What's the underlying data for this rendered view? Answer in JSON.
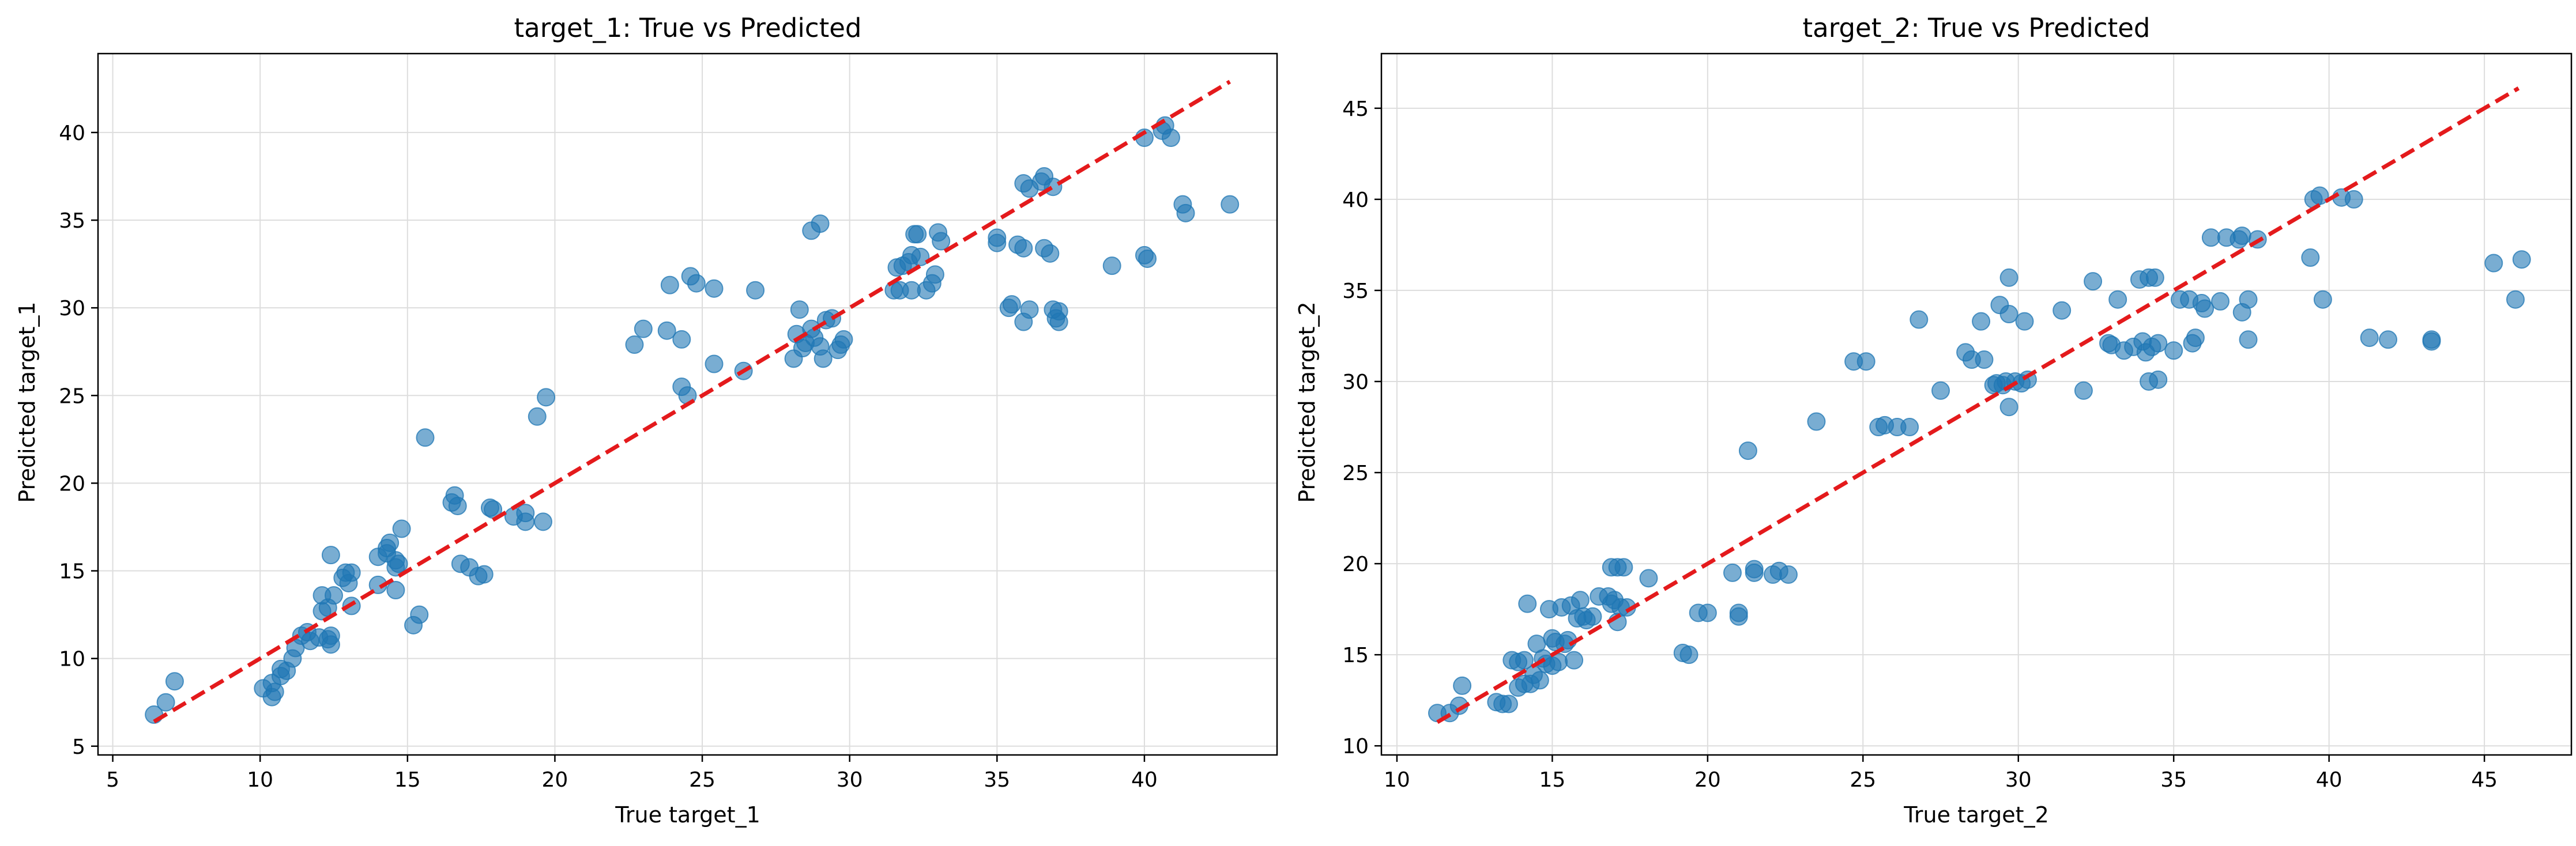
{
  "chart_data": [
    {
      "type": "scatter",
      "title": "target_1: True vs Predicted",
      "xlabel": "True target_1",
      "ylabel": "Predicted target_1",
      "xlim": [
        4.5,
        44.5
      ],
      "ylim": [
        4.5,
        44.5
      ],
      "xticks": [
        5,
        10,
        15,
        20,
        25,
        30,
        35,
        40
      ],
      "yticks": [
        5,
        10,
        15,
        20,
        25,
        30,
        35,
        40
      ],
      "grid": true,
      "point_color": "#1f77b4",
      "reference_color": "#e41a1c",
      "reference_line": [
        [
          6.4,
          6.4
        ],
        [
          42.9,
          42.9
        ]
      ],
      "points": [
        [
          6.4,
          6.8
        ],
        [
          6.8,
          7.5
        ],
        [
          7.1,
          8.7
        ],
        [
          10.1,
          8.3
        ],
        [
          10.4,
          7.8
        ],
        [
          10.5,
          8.1
        ],
        [
          10.4,
          8.6
        ],
        [
          10.7,
          9.0
        ],
        [
          10.7,
          9.4
        ],
        [
          10.9,
          9.3
        ],
        [
          11.1,
          10.0
        ],
        [
          11.2,
          10.6
        ],
        [
          11.4,
          11.3
        ],
        [
          11.7,
          11.0
        ],
        [
          11.6,
          11.5
        ],
        [
          12.0,
          11.2
        ],
        [
          12.1,
          12.7
        ],
        [
          12.1,
          13.6
        ],
        [
          12.3,
          11.1
        ],
        [
          12.3,
          12.9
        ],
        [
          12.4,
          15.9
        ],
        [
          12.5,
          13.6
        ],
        [
          12.4,
          10.8
        ],
        [
          12.4,
          11.3
        ],
        [
          12.8,
          14.6
        ],
        [
          12.9,
          14.9
        ],
        [
          13.0,
          14.3
        ],
        [
          13.1,
          13.0
        ],
        [
          13.1,
          14.9
        ],
        [
          14.0,
          14.2
        ],
        [
          14.0,
          15.8
        ],
        [
          14.3,
          16.0
        ],
        [
          14.3,
          16.3
        ],
        [
          14.4,
          16.6
        ],
        [
          14.6,
          15.6
        ],
        [
          14.6,
          15.2
        ],
        [
          14.7,
          15.4
        ],
        [
          14.6,
          13.9
        ],
        [
          14.8,
          17.4
        ],
        [
          15.2,
          11.9
        ],
        [
          15.4,
          12.5
        ],
        [
          15.6,
          22.6
        ],
        [
          16.5,
          18.9
        ],
        [
          16.6,
          19.3
        ],
        [
          16.7,
          18.7
        ],
        [
          16.8,
          15.4
        ],
        [
          17.1,
          15.2
        ],
        [
          17.4,
          14.7
        ],
        [
          17.6,
          14.8
        ],
        [
          17.8,
          18.6
        ],
        [
          17.9,
          18.5
        ],
        [
          18.6,
          18.1
        ],
        [
          19.0,
          17.8
        ],
        [
          19.0,
          18.3
        ],
        [
          19.4,
          23.8
        ],
        [
          19.6,
          17.8
        ],
        [
          19.7,
          24.9
        ],
        [
          22.7,
          27.9
        ],
        [
          23.0,
          28.8
        ],
        [
          23.8,
          28.7
        ],
        [
          23.9,
          31.3
        ],
        [
          24.3,
          28.2
        ],
        [
          24.3,
          25.5
        ],
        [
          24.5,
          25.0
        ],
        [
          24.6,
          31.8
        ],
        [
          24.8,
          31.4
        ],
        [
          25.4,
          31.1
        ],
        [
          25.4,
          26.8
        ],
        [
          26.4,
          26.4
        ],
        [
          26.8,
          31.0
        ],
        [
          28.1,
          27.1
        ],
        [
          28.2,
          28.5
        ],
        [
          28.3,
          29.9
        ],
        [
          28.4,
          27.7
        ],
        [
          28.5,
          28.0
        ],
        [
          28.7,
          34.4
        ],
        [
          28.7,
          28.8
        ],
        [
          28.8,
          28.3
        ],
        [
          29.0,
          34.8
        ],
        [
          29.0,
          27.8
        ],
        [
          29.1,
          27.1
        ],
        [
          29.2,
          29.3
        ],
        [
          29.4,
          29.4
        ],
        [
          29.6,
          27.6
        ],
        [
          29.7,
          27.9
        ],
        [
          29.8,
          28.2
        ],
        [
          31.5,
          31.0
        ],
        [
          31.6,
          32.3
        ],
        [
          31.7,
          31.0
        ],
        [
          31.8,
          32.4
        ],
        [
          32.0,
          32.6
        ],
        [
          32.1,
          33.0
        ],
        [
          32.1,
          31.0
        ],
        [
          32.2,
          34.2
        ],
        [
          32.3,
          34.2
        ],
        [
          32.4,
          32.9
        ],
        [
          32.6,
          31.0
        ],
        [
          32.8,
          31.4
        ],
        [
          32.9,
          31.9
        ],
        [
          33.0,
          34.3
        ],
        [
          33.1,
          33.8
        ],
        [
          35.0,
          33.7
        ],
        [
          35.0,
          34.0
        ],
        [
          35.4,
          30.0
        ],
        [
          35.5,
          30.2
        ],
        [
          35.7,
          33.6
        ],
        [
          35.9,
          33.4
        ],
        [
          35.9,
          29.2
        ],
        [
          35.9,
          37.1
        ],
        [
          36.1,
          29.9
        ],
        [
          36.1,
          36.8
        ],
        [
          36.5,
          37.2
        ],
        [
          36.6,
          37.5
        ],
        [
          36.6,
          33.4
        ],
        [
          36.8,
          33.1
        ],
        [
          36.9,
          29.9
        ],
        [
          36.9,
          36.9
        ],
        [
          37.0,
          29.4
        ],
        [
          37.1,
          29.8
        ],
        [
          37.1,
          29.2
        ],
        [
          38.9,
          32.4
        ],
        [
          40.0,
          33.0
        ],
        [
          40.0,
          39.7
        ],
        [
          40.1,
          32.8
        ],
        [
          40.6,
          40.1
        ],
        [
          40.7,
          40.4
        ],
        [
          40.9,
          39.7
        ],
        [
          41.3,
          35.9
        ],
        [
          41.4,
          35.4
        ],
        [
          42.9,
          35.9
        ]
      ]
    },
    {
      "type": "scatter",
      "title": "target_2: True vs Predicted",
      "xlabel": "True target_2",
      "ylabel": "Predicted target_2",
      "xlim": [
        9.5,
        47.8
      ],
      "ylim": [
        9.5,
        48.0
      ],
      "xticks": [
        10,
        15,
        20,
        25,
        30,
        35,
        40,
        45
      ],
      "yticks": [
        10,
        15,
        20,
        25,
        30,
        35,
        40,
        45
      ],
      "grid": true,
      "point_color": "#1f77b4",
      "reference_color": "#e41a1c",
      "reference_line": [
        [
          11.3,
          11.3
        ],
        [
          46.1,
          46.1
        ]
      ],
      "points": [
        [
          11.3,
          11.8
        ],
        [
          11.7,
          11.8
        ],
        [
          12.0,
          12.2
        ],
        [
          12.1,
          13.3
        ],
        [
          13.2,
          12.4
        ],
        [
          13.4,
          12.3
        ],
        [
          13.6,
          12.3
        ],
        [
          13.7,
          14.7
        ],
        [
          13.9,
          14.6
        ],
        [
          13.9,
          13.2
        ],
        [
          14.1,
          13.4
        ],
        [
          14.1,
          14.7
        ],
        [
          14.2,
          17.8
        ],
        [
          14.3,
          13.4
        ],
        [
          14.4,
          13.9
        ],
        [
          14.5,
          15.6
        ],
        [
          14.6,
          13.6
        ],
        [
          14.7,
          14.8
        ],
        [
          14.8,
          14.5
        ],
        [
          14.9,
          17.5
        ],
        [
          15.0,
          14.4
        ],
        [
          15.0,
          15.9
        ],
        [
          15.1,
          15.7
        ],
        [
          15.2,
          14.6
        ],
        [
          15.3,
          17.6
        ],
        [
          15.4,
          15.6
        ],
        [
          15.5,
          15.8
        ],
        [
          15.6,
          17.7
        ],
        [
          15.7,
          14.7
        ],
        [
          15.8,
          17.0
        ],
        [
          15.9,
          18.0
        ],
        [
          16.0,
          17.1
        ],
        [
          16.1,
          16.9
        ],
        [
          16.3,
          17.1
        ],
        [
          16.5,
          18.2
        ],
        [
          16.8,
          18.2
        ],
        [
          16.9,
          17.8
        ],
        [
          16.9,
          19.8
        ],
        [
          17.0,
          18.0
        ],
        [
          17.1,
          19.8
        ],
        [
          17.1,
          16.8
        ],
        [
          17.2,
          17.6
        ],
        [
          17.3,
          19.8
        ],
        [
          17.4,
          17.6
        ],
        [
          18.1,
          19.2
        ],
        [
          19.2,
          15.1
        ],
        [
          19.4,
          15.0
        ],
        [
          19.7,
          17.3
        ],
        [
          20.0,
          17.3
        ],
        [
          20.8,
          19.5
        ],
        [
          21.0,
          17.3
        ],
        [
          21.0,
          17.1
        ],
        [
          21.3,
          26.2
        ],
        [
          21.5,
          19.7
        ],
        [
          21.5,
          19.5
        ],
        [
          22.1,
          19.4
        ],
        [
          22.3,
          19.6
        ],
        [
          22.6,
          19.4
        ],
        [
          23.5,
          27.8
        ],
        [
          24.7,
          31.1
        ],
        [
          25.1,
          31.1
        ],
        [
          25.5,
          27.5
        ],
        [
          25.7,
          27.6
        ],
        [
          26.1,
          27.5
        ],
        [
          26.5,
          27.5
        ],
        [
          26.8,
          33.4
        ],
        [
          27.5,
          29.5
        ],
        [
          28.3,
          31.6
        ],
        [
          28.5,
          31.2
        ],
        [
          28.8,
          33.3
        ],
        [
          28.9,
          31.2
        ],
        [
          29.2,
          29.8
        ],
        [
          29.3,
          29.9
        ],
        [
          29.4,
          34.2
        ],
        [
          29.5,
          29.8
        ],
        [
          29.6,
          30.0
        ],
        [
          29.7,
          28.6
        ],
        [
          29.7,
          33.7
        ],
        [
          29.7,
          35.7
        ],
        [
          29.9,
          30.0
        ],
        [
          30.1,
          29.9
        ],
        [
          30.2,
          33.3
        ],
        [
          30.3,
          30.1
        ],
        [
          31.4,
          33.9
        ],
        [
          32.1,
          29.5
        ],
        [
          32.4,
          35.5
        ],
        [
          32.9,
          32.1
        ],
        [
          33.0,
          32.0
        ],
        [
          33.2,
          34.5
        ],
        [
          33.4,
          31.7
        ],
        [
          33.7,
          31.9
        ],
        [
          33.9,
          35.6
        ],
        [
          34.0,
          32.2
        ],
        [
          34.1,
          31.6
        ],
        [
          34.2,
          35.7
        ],
        [
          34.2,
          30.0
        ],
        [
          34.3,
          31.9
        ],
        [
          34.4,
          35.7
        ],
        [
          34.5,
          30.1
        ],
        [
          34.5,
          32.1
        ],
        [
          35.0,
          31.7
        ],
        [
          35.2,
          34.5
        ],
        [
          35.5,
          34.5
        ],
        [
          35.6,
          32.1
        ],
        [
          35.7,
          32.4
        ],
        [
          35.9,
          34.3
        ],
        [
          36.0,
          34.0
        ],
        [
          36.2,
          37.9
        ],
        [
          36.5,
          34.4
        ],
        [
          36.7,
          37.9
        ],
        [
          37.1,
          37.8
        ],
        [
          37.2,
          33.8
        ],
        [
          37.2,
          38.0
        ],
        [
          37.4,
          34.5
        ],
        [
          37.4,
          32.3
        ],
        [
          37.7,
          37.8
        ],
        [
          39.4,
          36.8
        ],
        [
          39.5,
          40.0
        ],
        [
          39.7,
          40.2
        ],
        [
          39.8,
          34.5
        ],
        [
          40.4,
          40.1
        ],
        [
          40.8,
          40.0
        ],
        [
          41.3,
          32.4
        ],
        [
          41.9,
          32.3
        ],
        [
          43.3,
          32.2
        ],
        [
          43.3,
          32.3
        ],
        [
          45.3,
          36.5
        ],
        [
          46.0,
          34.5
        ],
        [
          46.2,
          36.7
        ]
      ]
    }
  ]
}
